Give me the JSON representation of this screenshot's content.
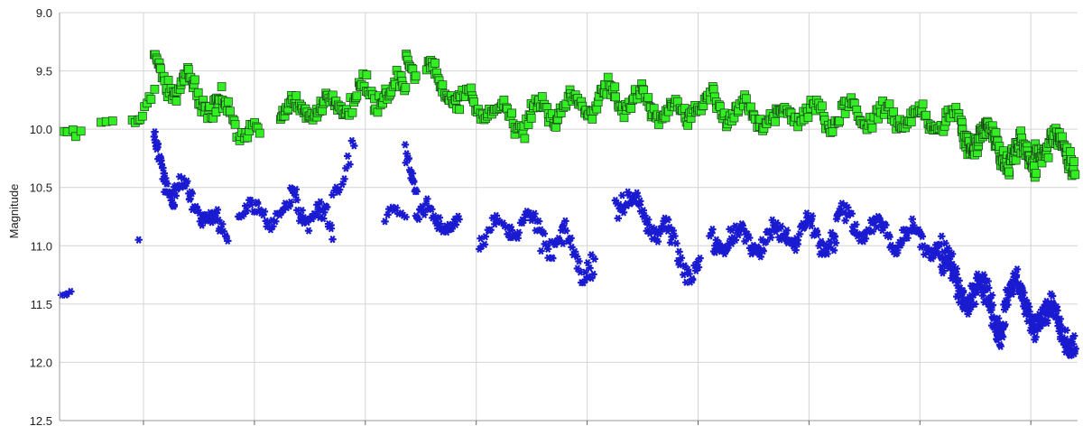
{
  "chart_data": {
    "type": "scatter",
    "ylabel": "Magnitude",
    "y_inverted": true,
    "ylim": [
      9.0,
      12.5
    ],
    "y_ticks": [
      "9.0",
      "9.5",
      "10.0",
      "10.5",
      "11.0",
      "11.5",
      "12.0",
      "12.5"
    ],
    "x_tick_count": 9,
    "x_tick_labels": [],
    "grid": true,
    "legend": "none",
    "colors": {
      "green_series": "#33ee22",
      "blue_series": "#1a1ad0",
      "outline": "#1a3a1a",
      "grid": "#d4d4d4"
    },
    "series": [
      {
        "marker": "square",
        "color": "#33ee22",
        "segments": [
          {
            "x": [
              0.0,
              2.0
            ],
            "mag": [
              9.95,
              10.05
            ],
            "jitter": 0.06,
            "n": 6
          },
          {
            "x": [
              4.0,
              5.0
            ],
            "mag": [
              9.92,
              9.92
            ],
            "jitter": 0.03,
            "n": 3
          },
          {
            "x": [
              7.0,
              9.0
            ],
            "mag": [
              9.9,
              9.75
            ],
            "jitter": 0.12,
            "n": 10
          },
          {
            "x": [
              9.0,
              16.0
            ],
            "mag": [
              9.5,
              9.85
            ],
            "jitter": 0.18,
            "n": 70
          },
          {
            "x": [
              16.0,
              19.0
            ],
            "mag": [
              9.9,
              10.1
            ],
            "jitter": 0.15,
            "n": 20
          },
          {
            "x": [
              21.0,
              27.0
            ],
            "mag": [
              9.85,
              9.8
            ],
            "jitter": 0.12,
            "n": 60
          },
          {
            "x": [
              27.0,
              33.0
            ],
            "mag": [
              9.75,
              9.65
            ],
            "jitter": 0.18,
            "n": 50
          },
          {
            "x": [
              33.0,
              34.0
            ],
            "mag": [
              9.35,
              9.5
            ],
            "jitter": 0.1,
            "n": 10
          },
          {
            "x": [
              35.0,
              38.0
            ],
            "mag": [
              9.5,
              9.75
            ],
            "jitter": 0.12,
            "n": 30
          },
          {
            "x": [
              38.0,
              45.0
            ],
            "mag": [
              9.75,
              9.95
            ],
            "jitter": 0.15,
            "n": 55
          },
          {
            "x": [
              45.0,
              52.0
            ],
            "mag": [
              9.85,
              9.75
            ],
            "jitter": 0.15,
            "n": 60
          },
          {
            "x": [
              52.0,
              60.0
            ],
            "mag": [
              9.7,
              9.9
            ],
            "jitter": 0.15,
            "n": 70
          },
          {
            "x": [
              60.0,
              69.0
            ],
            "mag": [
              9.75,
              9.95
            ],
            "jitter": 0.15,
            "n": 75
          },
          {
            "x": [
              69.0,
              80.0
            ],
            "mag": [
              9.85,
              9.9
            ],
            "jitter": 0.16,
            "n": 85
          },
          {
            "x": [
              80.0,
              86.0
            ],
            "mag": [
              9.9,
              9.95
            ],
            "jitter": 0.14,
            "n": 50
          },
          {
            "x": [
              86.0,
              93.0
            ],
            "mag": [
              10.0,
              10.3
            ],
            "jitter": 0.2,
            "n": 140
          },
          {
            "x": [
              93.0,
              97.0
            ],
            "mag": [
              10.1,
              10.25
            ],
            "jitter": 0.2,
            "n": 70
          }
        ]
      },
      {
        "marker": "star",
        "color": "#1a1ad0",
        "segments": [
          {
            "x": [
              0.0,
              1.0
            ],
            "mag": [
              11.35,
              11.4
            ],
            "jitter": 0.08,
            "n": 5
          },
          {
            "x": [
              7.0,
              8.0
            ],
            "mag": [
              10.95,
              10.95
            ],
            "jitter": 0.02,
            "n": 1
          },
          {
            "x": [
              9.0,
              11.0
            ],
            "mag": [
              10.1,
              10.6
            ],
            "jitter": 0.2,
            "n": 40
          },
          {
            "x": [
              11.0,
              15.0
            ],
            "mag": [
              10.5,
              10.8
            ],
            "jitter": 0.15,
            "n": 45
          },
          {
            "x": [
              15.0,
              16.0
            ],
            "mag": [
              10.85,
              10.95
            ],
            "jitter": 0.1,
            "n": 10
          },
          {
            "x": [
              17.0,
              22.0
            ],
            "mag": [
              10.7,
              10.75
            ],
            "jitter": 0.15,
            "n": 35
          },
          {
            "x": [
              22.0,
              26.0
            ],
            "mag": [
              10.6,
              10.85
            ],
            "jitter": 0.18,
            "n": 40
          },
          {
            "x": [
              26.0,
              28.0
            ],
            "mag": [
              10.5,
              10.2
            ],
            "jitter": 0.2,
            "n": 12
          },
          {
            "x": [
              31.0,
              33.0
            ],
            "mag": [
              10.8,
              10.7
            ],
            "jitter": 0.12,
            "n": 10
          },
          {
            "x": [
              33.0,
              34.0
            ],
            "mag": [
              10.1,
              10.5
            ],
            "jitter": 0.15,
            "n": 15
          },
          {
            "x": [
              34.0,
              38.0
            ],
            "mag": [
              10.7,
              10.85
            ],
            "jitter": 0.12,
            "n": 40
          },
          {
            "x": [
              40.0,
              43.0
            ],
            "mag": [
              10.9,
              10.85
            ],
            "jitter": 0.15,
            "n": 20
          },
          {
            "x": [
              43.0,
              48.0
            ],
            "mag": [
              10.75,
              11.0
            ],
            "jitter": 0.2,
            "n": 45
          },
          {
            "x": [
              48.0,
              51.0
            ],
            "mag": [
              11.0,
              11.2
            ],
            "jitter": 0.2,
            "n": 25
          },
          {
            "x": [
              53.0,
              58.0
            ],
            "mag": [
              10.55,
              10.9
            ],
            "jitter": 0.18,
            "n": 50
          },
          {
            "x": [
              58.0,
              61.0
            ],
            "mag": [
              11.0,
              11.2
            ],
            "jitter": 0.2,
            "n": 25
          },
          {
            "x": [
              62.0,
              69.0
            ],
            "mag": [
              10.95,
              10.95
            ],
            "jitter": 0.17,
            "n": 70
          },
          {
            "x": [
              69.0,
              74.0
            ],
            "mag": [
              10.85,
              10.95
            ],
            "jitter": 0.18,
            "n": 55
          },
          {
            "x": [
              74.0,
              80.0
            ],
            "mag": [
              10.75,
              10.95
            ],
            "jitter": 0.16,
            "n": 60
          },
          {
            "x": [
              80.0,
              84.0
            ],
            "mag": [
              10.9,
              11.0
            ],
            "jitter": 0.15,
            "n": 40
          },
          {
            "x": [
              84.0,
              90.0
            ],
            "mag": [
              11.2,
              11.6
            ],
            "jitter": 0.25,
            "n": 140
          },
          {
            "x": [
              90.0,
              97.0
            ],
            "mag": [
              11.4,
              11.8
            ],
            "jitter": 0.25,
            "n": 150
          }
        ]
      }
    ]
  }
}
